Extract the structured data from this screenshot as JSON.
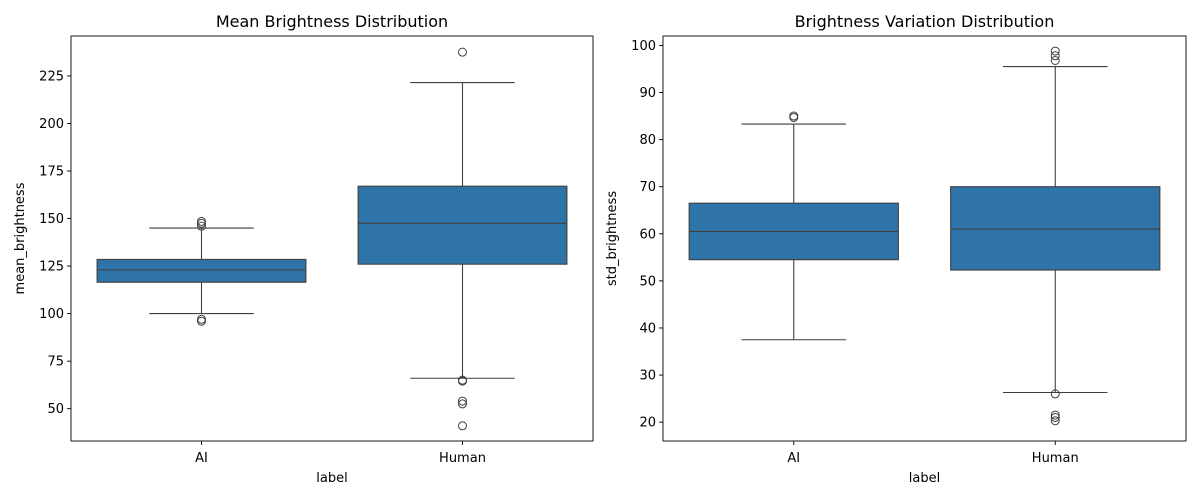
{
  "chart_data": [
    {
      "type": "boxplot",
      "title": "Mean Brightness Distribution",
      "xlabel": "label",
      "ylabel": "mean_brightness",
      "ylim": [
        33,
        246
      ],
      "yticks": [
        50,
        75,
        100,
        125,
        150,
        175,
        200,
        225
      ],
      "categories": [
        "AI",
        "Human"
      ],
      "color": "#2f74a9",
      "boxes": [
        {
          "category": "AI",
          "whisker_low": 100,
          "q1": 116.5,
          "median": 123,
          "q3": 128.5,
          "whisker_high": 145,
          "outliers": [
            96,
            97,
            146,
            147.5,
            148.5
          ]
        },
        {
          "category": "Human",
          "whisker_low": 66,
          "q1": 126,
          "median": 147.5,
          "q3": 167,
          "whisker_high": 221.5,
          "outliers": [
            41,
            52.5,
            54,
            64.5,
            65,
            237.5
          ]
        }
      ]
    },
    {
      "type": "boxplot",
      "title": "Brightness Variation Distribution",
      "xlabel": "label",
      "ylabel": "std_brightness",
      "ylim": [
        16,
        102
      ],
      "yticks": [
        20,
        30,
        40,
        50,
        60,
        70,
        80,
        90,
        100
      ],
      "categories": [
        "AI",
        "Human"
      ],
      "color": "#2f74a9",
      "boxes": [
        {
          "category": "AI",
          "whisker_low": 37.5,
          "q1": 54.5,
          "median": 60.5,
          "q3": 66.5,
          "whisker_high": 83.3,
          "outliers": [
            84.7,
            85
          ]
        },
        {
          "category": "Human",
          "whisker_low": 26.3,
          "q1": 52.3,
          "median": 61,
          "q3": 70,
          "whisker_high": 95.5,
          "outliers": [
            20.3,
            21,
            21.5,
            26,
            96.8,
            97.8,
            98.8
          ]
        }
      ]
    }
  ]
}
